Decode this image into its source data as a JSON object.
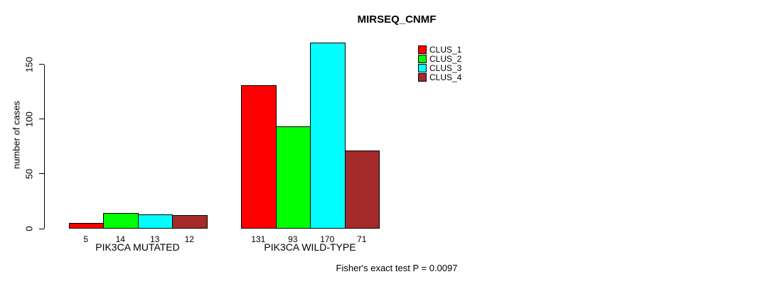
{
  "chart_data": {
    "type": "bar",
    "title": "MIRSEQ_CNMF",
    "ylabel": "number of cases",
    "xlabel": "",
    "categories": [
      "PIK3CA MUTATED",
      "PIK3CA WILD-TYPE"
    ],
    "series": [
      {
        "name": "CLUS_1",
        "color": "#FF0000",
        "values": [
          5,
          131
        ]
      },
      {
        "name": "CLUS_2",
        "color": "#00FF00",
        "values": [
          14,
          93
        ]
      },
      {
        "name": "CLUS_3",
        "color": "#00FFFF",
        "values": [
          13,
          170
        ]
      },
      {
        "name": "CLUS_4",
        "color": "#A52A2A",
        "values": [
          12,
          71
        ]
      }
    ],
    "yticks": [
      0,
      50,
      100,
      150
    ],
    "ylim": [
      0,
      175
    ],
    "grid": false,
    "bar_value_labels": [
      [
        5,
        14,
        13,
        12
      ],
      [
        131,
        93,
        170,
        71
      ]
    ],
    "legend_position": "top-right",
    "legend_entries": [
      "CLUS_1",
      "CLUS_2",
      "CLUS_3",
      "CLUS_4"
    ],
    "annotation": "Fisher's exact test P = 0.0097",
    "background_color": "#FFFFFF",
    "axis_color": "#000000"
  }
}
